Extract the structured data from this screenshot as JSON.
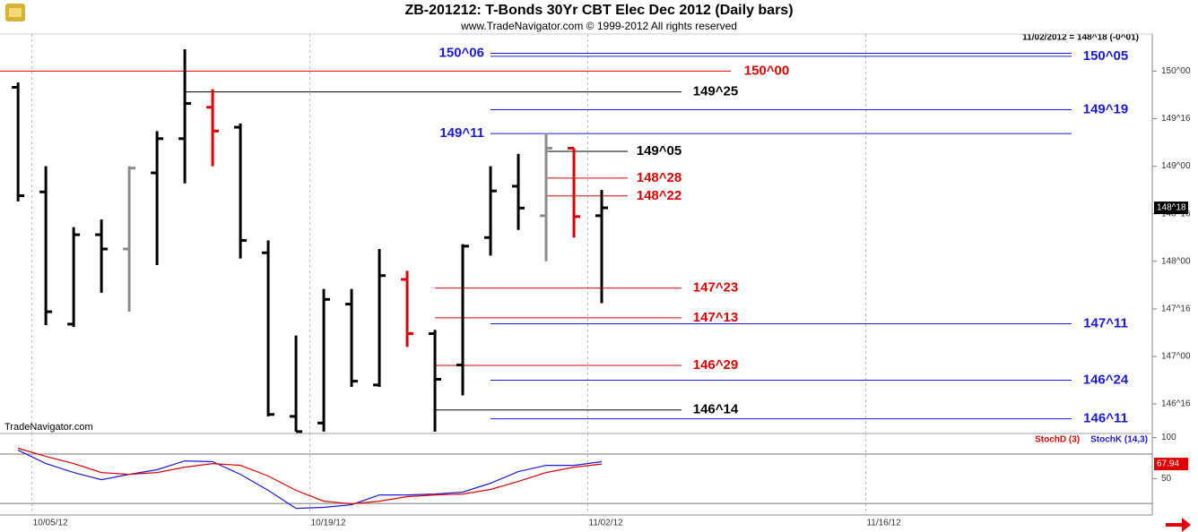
{
  "chart_data": [
    {
      "type": "ohlc",
      "title": "ZB-201212:  T-Bonds 30Yr CBT Elec Dec 2012  (Daily bars)",
      "subtitle": "www.TradeNavigator.com © 1999-2012 All rights reserved",
      "status": "11/02/2012 = 148^18 (-0^01)",
      "watermark": "TradeNavigator.com",
      "open": [
        149.83,
        148.73,
        147.34,
        148.28,
        148.13,
        148.93,
        149.29,
        149.62,
        149.41,
        148.09,
        146.37,
        146.3,
        147.55,
        146.7,
        147.81,
        147.24,
        146.91,
        148.25,
        148.79,
        148.48,
        149.19,
        148.48
      ],
      "high": [
        149.88,
        149.0,
        148.36,
        148.44,
        149.0,
        149.37,
        150.23,
        149.81,
        149.45,
        148.22,
        147.22,
        147.71,
        147.71,
        148.13,
        147.9,
        147.28,
        148.18,
        149.0,
        149.13,
        149.35,
        149.19,
        148.75
      ],
      "low": [
        148.63,
        147.33,
        147.31,
        147.67,
        147.47,
        147.96,
        148.82,
        149.0,
        148.03,
        146.37,
        146.21,
        146.21,
        146.68,
        146.68,
        147.1,
        146.21,
        146.59,
        148.06,
        148.33,
        148.0,
        148.25,
        147.56
      ],
      "close": [
        148.69,
        147.47,
        148.28,
        148.13,
        148.98,
        149.29,
        149.66,
        149.37,
        148.22,
        146.39,
        146.21,
        147.6,
        146.74,
        147.85,
        147.24,
        146.76,
        148.16,
        148.74,
        148.56,
        149.19,
        148.47,
        148.5625
      ],
      "colors": [
        "#000000",
        "#000000",
        "#000000",
        "#000000",
        "#8c8c8c",
        "#000000",
        "#000000",
        "#e00000",
        "#000000",
        "#000000",
        "#000000",
        "#000000",
        "#000000",
        "#000000",
        "#e00000",
        "#000000",
        "#000000",
        "#000000",
        "#000000",
        "#8c8c8c",
        "#e00000",
        "#000000"
      ],
      "xlim": [
        -0.65,
        40.81
      ],
      "xticks": [
        {
          "value": 0.5,
          "label": "10/05/12"
        },
        {
          "value": 10.5,
          "label": "10/19/12"
        },
        {
          "value": 20.5,
          "label": "11/02/12"
        },
        {
          "value": 30.5,
          "label": "11/16/12"
        }
      ],
      "ylim": [
        146.19,
        150.39
      ],
      "yticks": [
        {
          "value": 150,
          "label": "150^00"
        },
        {
          "value": 149.5,
          "label": "149^16"
        },
        {
          "value": 149,
          "label": "149^00"
        },
        {
          "value": 148.5,
          "label": "148^16"
        },
        {
          "value": 148,
          "label": "148^00"
        },
        {
          "value": 147.5,
          "label": "147^16"
        },
        {
          "value": 147,
          "label": "147^00"
        },
        {
          "value": 146.5,
          "label": "146^16"
        }
      ],
      "markers": [
        {
          "value": 148.5625,
          "label": "148^18",
          "color": "#000000"
        }
      ],
      "levels": [
        {
          "label": "150^06",
          "value": 150.1875,
          "color": "#1a1adb"
        },
        {
          "label": "150^05",
          "value": 150.15625,
          "color": "#1a1adb"
        },
        {
          "label": "150^00",
          "value": 150,
          "color": "#e00000"
        },
        {
          "label": "149^25",
          "value": 149.78125,
          "color": "#000000"
        },
        {
          "label": "149^19",
          "value": 149.59375,
          "color": "#1a1adb"
        },
        {
          "label": "149^11",
          "value": 149.34375,
          "color": "#1a1adb"
        },
        {
          "label": "149^05",
          "value": 149.15625,
          "color": "#000000"
        },
        {
          "label": "148^28",
          "value": 148.875,
          "color": "#e00000"
        },
        {
          "label": "148^22",
          "value": 148.6875,
          "color": "#e00000"
        },
        {
          "label": "147^23",
          "value": 147.71875,
          "color": "#e00000"
        },
        {
          "label": "147^13",
          "value": 147.40625,
          "color": "#e00000"
        },
        {
          "label": "147^11",
          "value": 147.34375,
          "color": "#1a1adb"
        },
        {
          "label": "146^29",
          "value": 146.90625,
          "color": "#e00000"
        },
        {
          "label": "146^24",
          "value": 146.75,
          "color": "#1a1adb"
        },
        {
          "label": "146^14",
          "value": 146.4375,
          "color": "#000000"
        },
        {
          "label": "146^11",
          "value": 146.34375,
          "color": "#1a1adb"
        }
      ]
    },
    {
      "type": "line",
      "ylim": [
        6,
        105
      ],
      "yticks": [
        100,
        50
      ],
      "hlines": [
        80,
        20
      ],
      "markers": [
        {
          "value": 67.94,
          "label": "67.94",
          "color": "#e00000"
        }
      ],
      "series": [
        {
          "name": "StochD (3)",
          "color": "#e00000",
          "values": [
            87.0,
            77.2,
            68.5,
            57.6,
            55.4,
            57.6,
            64.1,
            68.5,
            66.3,
            53.3,
            35.9,
            22.8,
            19.6,
            22.8,
            28.3,
            30.4,
            31.5,
            37.0,
            46.7,
            57.6,
            64.1,
            67.94
          ]
        },
        {
          "name": "StochK (14,3)",
          "color": "#1a1adb",
          "values": [
            84.8,
            68.5,
            57.6,
            48.9,
            55.4,
            60.9,
            71.7,
            70.7,
            55.4,
            35.9,
            14.1,
            15.2,
            18.5,
            30.4,
            30.4,
            31.5,
            33.7,
            44.6,
            58.7,
            66.3,
            66.3,
            70.7
          ]
        }
      ]
    }
  ]
}
